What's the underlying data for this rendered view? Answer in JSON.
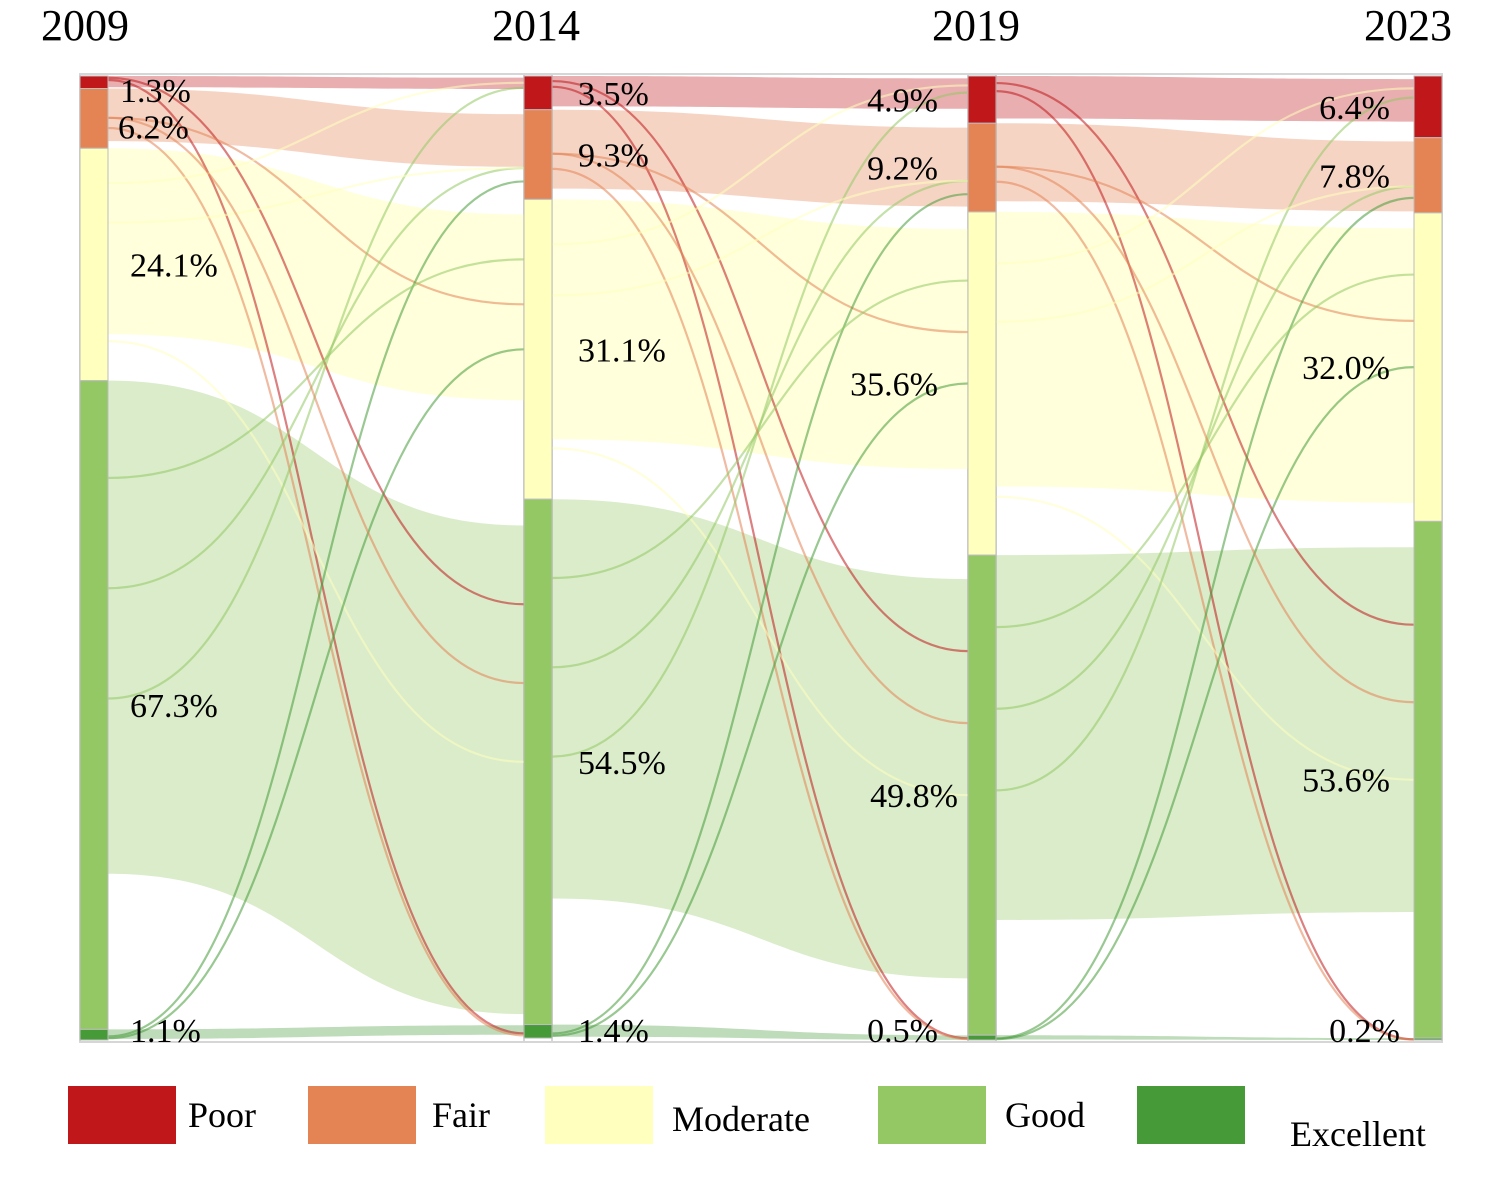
{
  "chart_data": {
    "type": "sankey",
    "title": "",
    "years": [
      "2009",
      "2014",
      "2019",
      "2023"
    ],
    "categories": [
      "Poor",
      "Fair",
      "Moderate",
      "Good",
      "Excellent"
    ],
    "colors": {
      "Poor": "#c0171b",
      "Fair": "#e48455",
      "Moderate": "#ffffbe",
      "Good": "#94c865",
      "Excellent": "#469a38"
    },
    "shares": [
      {
        "year": "2009",
        "Poor": 1.3,
        "Fair": 6.2,
        "Moderate": 24.1,
        "Good": 67.3,
        "Excellent": 1.1
      },
      {
        "year": "2014",
        "Poor": 3.5,
        "Fair": 9.3,
        "Moderate": 31.1,
        "Good": 54.5,
        "Excellent": 1.4
      },
      {
        "year": "2019",
        "Poor": 4.9,
        "Fair": 9.2,
        "Moderate": 35.6,
        "Good": 49.8,
        "Excellent": 0.5
      },
      {
        "year": "2023",
        "Poor": 6.4,
        "Fair": 7.8,
        "Moderate": 32.0,
        "Good": 53.6,
        "Excellent": 0.2
      }
    ],
    "labels": [
      [
        "1.3%",
        "6.2%",
        "24.1%",
        "67.3%",
        "1.1%"
      ],
      [
        "3.5%",
        "9.3%",
        "31.1%",
        "54.5%",
        "1.4%"
      ],
      [
        "4.9%",
        "9.2%",
        "35.6%",
        "49.8%",
        "0.5%"
      ],
      [
        "6.4%",
        "7.8%",
        "32.0%",
        "53.6%",
        "0.2%"
      ]
    ],
    "legend": [
      "Poor",
      "Fair",
      "Moderate",
      "Good",
      "Excellent"
    ]
  }
}
